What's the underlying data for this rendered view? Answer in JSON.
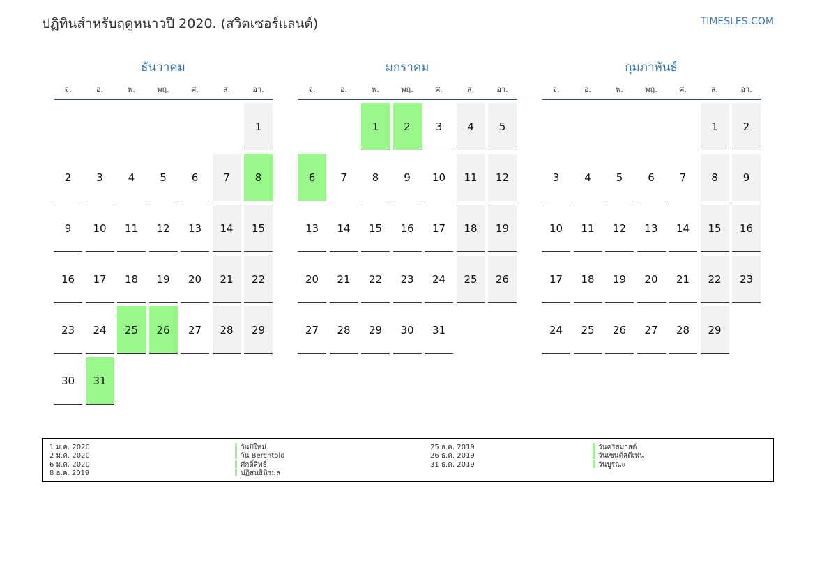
{
  "header": {
    "title": "ปฏิทินสำหรับฤดูหนาวปี 2020. (สวิตเซอร์แลนด์)",
    "site": "TIMESLES.COM"
  },
  "weekdays": [
    "จ.",
    "อ.",
    "พ.",
    "พฤ.",
    "ศ.",
    "ส.",
    "อา."
  ],
  "months": [
    {
      "name": "ธันวาคม",
      "holidays": [
        8,
        25,
        26,
        31
      ],
      "weeks": [
        [
          null,
          null,
          null,
          null,
          null,
          null,
          1
        ],
        [
          2,
          3,
          4,
          5,
          6,
          7,
          8
        ],
        [
          9,
          10,
          11,
          12,
          13,
          14,
          15
        ],
        [
          16,
          17,
          18,
          19,
          20,
          21,
          22
        ],
        [
          23,
          24,
          25,
          26,
          27,
          28,
          29
        ],
        [
          30,
          31,
          null,
          null,
          null,
          null,
          null
        ]
      ]
    },
    {
      "name": "มกราคม",
      "holidays": [
        1,
        2,
        6
      ],
      "weeks": [
        [
          null,
          null,
          1,
          2,
          3,
          4,
          5
        ],
        [
          6,
          7,
          8,
          9,
          10,
          11,
          12
        ],
        [
          13,
          14,
          15,
          16,
          17,
          18,
          19
        ],
        [
          20,
          21,
          22,
          23,
          24,
          25,
          26
        ],
        [
          27,
          28,
          29,
          30,
          31,
          null,
          null
        ]
      ]
    },
    {
      "name": "กุมภาพันธ์",
      "holidays": [],
      "weeks": [
        [
          null,
          null,
          null,
          null,
          null,
          1,
          2
        ],
        [
          3,
          4,
          5,
          6,
          7,
          8,
          9
        ],
        [
          10,
          11,
          12,
          13,
          14,
          15,
          16
        ],
        [
          17,
          18,
          19,
          20,
          21,
          22,
          23
        ],
        [
          24,
          25,
          26,
          27,
          28,
          29,
          null
        ]
      ]
    }
  ],
  "legend": [
    {
      "date": "1 ม.ค. 2020",
      "name": "วันปีใหม่"
    },
    {
      "date": "2 ม.ค. 2020",
      "name": "วัน Berchtold"
    },
    {
      "date": "6 ม.ค. 2020",
      "name": "ศักดิ์สิทธิ์"
    },
    {
      "date": "8 ธ.ค. 2019",
      "name": "ปฏิสนธินิรมล"
    },
    {
      "date": "25 ธ.ค. 2019",
      "name": "วันคริสมาสต์"
    },
    {
      "date": "26 ธ.ค. 2019",
      "name": "วันเซนต์สตีเฟน"
    },
    {
      "date": "31 ธ.ค. 2019",
      "name": "วันบูรณะ"
    }
  ]
}
